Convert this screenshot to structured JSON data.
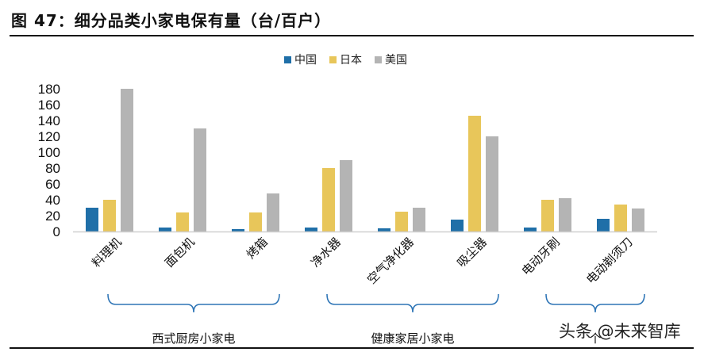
{
  "title": "图 47：细分品类小家电保有量（台/百户）",
  "watermark": "头条 @未来智库",
  "chart_data": {
    "type": "bar",
    "title": "图 47：细分品类小家电保有量（台/百户）",
    "xlabel": "",
    "ylabel": "",
    "ylim": [
      0,
      180
    ],
    "yticks": [
      0,
      20,
      40,
      60,
      80,
      100,
      120,
      140,
      160,
      180
    ],
    "grid": false,
    "legend_position": "top-center",
    "categories": [
      "料理机",
      "面包机",
      "烤箱",
      "净水器",
      "空气净化器",
      "吸尘器",
      "电动牙刷",
      "电动剃须刀"
    ],
    "series": [
      {
        "name": "中国",
        "color": "#1f6fa8",
        "values": [
          30,
          5,
          3,
          5,
          4,
          15,
          5,
          16
        ]
      },
      {
        "name": "日本",
        "color": "#e8c65a",
        "values": [
          40,
          24,
          24,
          80,
          25,
          146,
          40,
          34
        ]
      },
      {
        "name": "美国",
        "color": "#b4b4b4",
        "values": [
          180,
          130,
          48,
          90,
          30,
          120,
          42,
          29
        ]
      }
    ],
    "groups": [
      {
        "label": "西式厨房小家电",
        "from": 0,
        "to": 2
      },
      {
        "label": "健康家居小家电",
        "from": 3,
        "to": 5
      },
      {
        "label": "个",
        "from": 6,
        "to": 7
      }
    ]
  }
}
